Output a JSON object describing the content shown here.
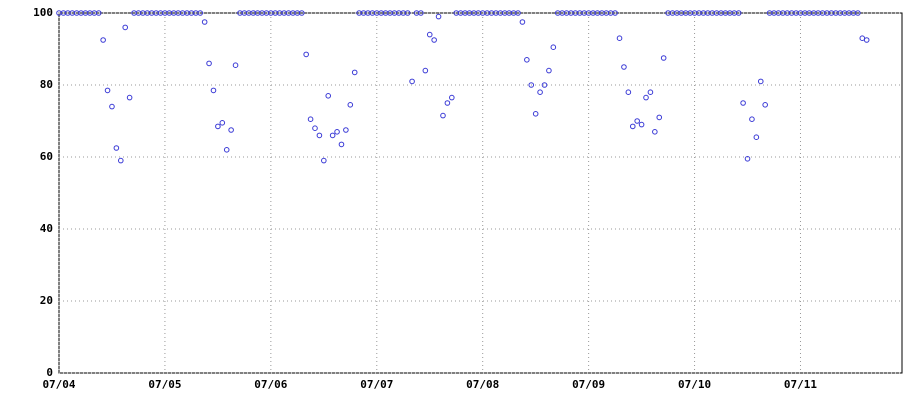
{
  "chart_data": {
    "type": "scatter",
    "color": "#3b3bd6",
    "grid": true,
    "x": [
      0,
      1,
      2,
      3,
      4,
      5,
      6,
      7,
      8,
      9,
      10,
      11,
      12,
      13,
      14,
      15,
      16,
      17,
      18,
      19,
      20,
      21,
      22,
      23,
      24,
      25,
      26,
      27,
      28,
      29,
      30,
      31,
      32,
      33,
      34,
      35,
      36,
      37,
      38,
      39,
      40,
      41,
      42,
      43,
      44,
      45,
      46,
      47,
      48,
      49,
      50,
      51,
      52,
      53,
      54,
      55,
      56,
      57,
      58,
      59,
      60,
      61,
      62,
      63,
      64,
      65,
      66,
      67,
      68,
      69,
      70,
      71,
      72,
      73,
      74,
      75,
      76,
      77,
      78,
      79,
      80,
      81,
      82,
      83,
      84,
      85,
      86,
      87,
      88,
      89,
      90,
      91,
      92,
      93,
      94,
      95,
      96,
      97,
      98,
      99,
      100,
      101,
      102,
      103,
      104,
      105,
      106,
      107,
      108,
      109,
      110,
      111,
      112,
      113,
      114,
      115,
      116,
      117,
      118,
      119,
      120,
      121,
      122,
      123,
      124,
      125,
      126,
      127,
      128,
      129,
      130,
      131,
      132,
      133,
      134,
      135,
      136,
      137,
      138,
      139,
      140,
      141,
      142,
      143,
      144,
      145,
      146,
      147,
      148,
      149,
      150,
      151,
      152,
      153,
      154,
      155,
      156,
      157,
      158,
      159,
      160,
      161,
      162,
      163,
      164,
      165,
      166,
      167,
      168,
      169,
      170,
      171,
      172,
      173,
      174,
      175,
      176,
      177,
      178,
      179,
      180,
      181,
      182,
      183
    ],
    "values": [
      100,
      100,
      100,
      100,
      100,
      100,
      100,
      100,
      100,
      100,
      92.5,
      78.5,
      74,
      62.5,
      59,
      96,
      76.5,
      100,
      100,
      100,
      100,
      100,
      100,
      100,
      100,
      100,
      100,
      100,
      100,
      100,
      100,
      100,
      100,
      97.5,
      86,
      78.5,
      68.5,
      69.5,
      62,
      67.5,
      85.5,
      100,
      100,
      100,
      100,
      100,
      100,
      100,
      100,
      100,
      100,
      100,
      100,
      100,
      100,
      100,
      88.5,
      70.5,
      68,
      66,
      59,
      77,
      66,
      67,
      63.5,
      67.5,
      74.5,
      83.5,
      100,
      100,
      100,
      100,
      100,
      100,
      100,
      100,
      100,
      100,
      100,
      100,
      81,
      100,
      100,
      84,
      94,
      92.5,
      99,
      71.5,
      75,
      76.5,
      100,
      100,
      100,
      100,
      100,
      100,
      100,
      100,
      100,
      100,
      100,
      100,
      100,
      100,
      100,
      97.5,
      87,
      80,
      72,
      78,
      80,
      84,
      90.5,
      100,
      100,
      100,
      100,
      100,
      100,
      100,
      100,
      100,
      100,
      100,
      100,
      100,
      100,
      93,
      85,
      78,
      68.5,
      70,
      69,
      76.5,
      78,
      67,
      71,
      87.5,
      100,
      100,
      100,
      100,
      100,
      100,
      100,
      100,
      100,
      100,
      100,
      100,
      100,
      100,
      100,
      100,
      100,
      75,
      59.5,
      70.5,
      65.5,
      81,
      74.5,
      100,
      100,
      100,
      100,
      100,
      100,
      100,
      100,
      100,
      100,
      100,
      100,
      100,
      100,
      100,
      100,
      100,
      100,
      100,
      100,
      100,
      93,
      92.5
    ],
    "xlim": [
      0,
      191
    ],
    "xticks": [
      {
        "value": 0,
        "label": "07/04"
      },
      {
        "value": 24,
        "label": "07/05"
      },
      {
        "value": 48,
        "label": "07/06"
      },
      {
        "value": 72,
        "label": "07/07"
      },
      {
        "value": 96,
        "label": "07/08"
      },
      {
        "value": 120,
        "label": "07/09"
      },
      {
        "value": 144,
        "label": "07/10"
      },
      {
        "value": 168,
        "label": "07/11"
      }
    ],
    "ylim": [
      0,
      100
    ],
    "yticks": [
      0,
      20,
      40,
      60,
      80,
      100
    ]
  }
}
